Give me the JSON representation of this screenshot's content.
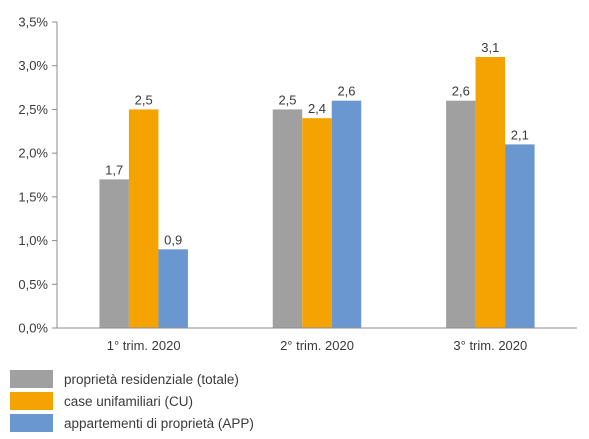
{
  "chart_data": {
    "type": "bar",
    "categories": [
      "1° trim. 2020",
      "2° trim. 2020",
      "3° trim. 2020"
    ],
    "series": [
      {
        "name": "proprietà residenziale (totale)",
        "color": "#a0a0a0",
        "values": [
          1.7,
          2.5,
          2.6
        ],
        "labels": [
          "1,7",
          "2,5",
          "2,6"
        ]
      },
      {
        "name": "case unifamiliari (CU)",
        "color": "#f5a300",
        "values": [
          2.5,
          2.4,
          3.1
        ],
        "labels": [
          "2,5",
          "2,4",
          "3,1"
        ]
      },
      {
        "name": "appartementi di proprietà (APP)",
        "color": "#6a97cf",
        "values": [
          0.9,
          2.6,
          2.1
        ],
        "labels": [
          "0,9",
          "2,6",
          "2,1"
        ]
      }
    ],
    "ylim": [
      0,
      3.5
    ],
    "yticks": [
      0,
      0.5,
      1.0,
      1.5,
      2.0,
      2.5,
      3.0,
      3.5
    ],
    "ytick_labels": [
      "0,0%",
      "0,5%",
      "1,0%",
      "1,5%",
      "2,0%",
      "2,5%",
      "3,0%",
      "3,5%"
    ],
    "grid": false,
    "legend": "bottom-left"
  }
}
